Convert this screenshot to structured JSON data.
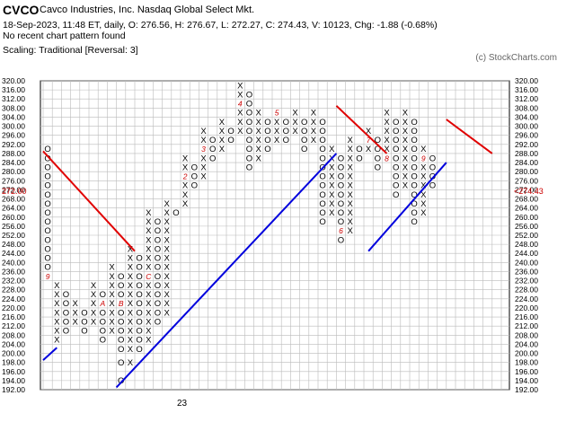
{
  "header": {
    "symbol": "CVCO",
    "company": "Cavco Industries, Inc.  Nasdaq Global Select Mkt.",
    "stats": "18-Sep-2023, 11:48 ET, daily, O: 276.56, H: 276.67, L: 272.27, C: 274.43, V: 10123, Chg: -1.88 (-0.68%)",
    "pattern": "No recent chart pattern found",
    "scaling": "Scaling: Traditional [Reversal: 3]",
    "copyright": "(c) StockCharts.com"
  },
  "chart_data": {
    "type": "point-and-figure",
    "box_size": 4,
    "reversal": 3,
    "ylim": [
      192,
      320
    ],
    "y_ticks": [
      192,
      194,
      196,
      198,
      200,
      204,
      208,
      212,
      216,
      220,
      224,
      228,
      232,
      236,
      240,
      244,
      248,
      252,
      256,
      260,
      264,
      268,
      272,
      276,
      280,
      284,
      288,
      292,
      296,
      300,
      304,
      308,
      312,
      316,
      320
    ],
    "y_tick_labels": [
      "192.00",
      "194.00",
      "196.00",
      "198.00",
      "200.00",
      "204.00",
      "208.00",
      "212.00",
      "216.00",
      "220.00",
      "224.00",
      "228.00",
      "232.00",
      "236.00",
      "240.00",
      "244.00",
      "248.00",
      "252.00",
      "256.00",
      "260.00",
      "264.00",
      "268.00",
      "272.00",
      "276.00",
      "280.00",
      "284.00",
      "288.00",
      "292.00",
      "296.00",
      "300.00",
      "304.00",
      "308.00",
      "312.00",
      "316.00",
      "320.00"
    ],
    "x_label": "23",
    "last_price_left": "272.00",
    "last_price_right": "<274.43",
    "columns": [
      {
        "t": "O",
        "lo": 232,
        "hi": 288,
        "marks": {
          "232": "9"
        }
      },
      {
        "t": "X",
        "lo": 204,
        "hi": 228
      },
      {
        "t": "O",
        "lo": 208,
        "hi": 224
      },
      {
        "t": "X",
        "lo": 212,
        "hi": 220
      },
      {
        "t": "O",
        "lo": 208,
        "hi": 216
      },
      {
        "t": "X",
        "lo": 212,
        "hi": 228
      },
      {
        "t": "O",
        "lo": 204,
        "hi": 224,
        "marks": {
          "220": "A"
        }
      },
      {
        "t": "X",
        "lo": 208,
        "hi": 236
      },
      {
        "t": "O",
        "lo": 192,
        "hi": 232,
        "marks": {
          "220": "B"
        }
      },
      {
        "t": "X",
        "lo": 196,
        "hi": 244
      },
      {
        "t": "O",
        "lo": 200,
        "hi": 240
      },
      {
        "t": "X",
        "lo": 204,
        "hi": 260,
        "marks": {
          "232": "C"
        }
      },
      {
        "t": "O",
        "lo": 212,
        "hi": 256
      },
      {
        "t": "X",
        "lo": 216,
        "hi": 264
      },
      {
        "t": "O",
        "lo": 260,
        "hi": 260
      },
      {
        "t": "X",
        "lo": 264,
        "hi": 284,
        "marks": {
          "276": "2"
        }
      },
      {
        "t": "O",
        "lo": 272,
        "hi": 280
      },
      {
        "t": "X",
        "lo": 276,
        "hi": 296,
        "marks": {
          "288": "3"
        }
      },
      {
        "t": "O",
        "lo": 284,
        "hi": 292
      },
      {
        "t": "X",
        "lo": 288,
        "hi": 300
      },
      {
        "t": "O",
        "lo": 292,
        "hi": 296
      },
      {
        "t": "X",
        "lo": 296,
        "hi": 316,
        "marks": {
          "308": "4"
        }
      },
      {
        "t": "O",
        "lo": 280,
        "hi": 312
      },
      {
        "t": "X",
        "lo": 284,
        "hi": 304
      },
      {
        "t": "O",
        "lo": 288,
        "hi": 300
      },
      {
        "t": "X",
        "lo": 292,
        "hi": 304,
        "marks": {
          "304": "5"
        }
      },
      {
        "t": "O",
        "lo": 292,
        "hi": 300
      },
      {
        "t": "X",
        "lo": 296,
        "hi": 304
      },
      {
        "t": "O",
        "lo": 288,
        "hi": 300
      },
      {
        "t": "X",
        "lo": 292,
        "hi": 304
      },
      {
        "t": "O",
        "lo": 256,
        "hi": 300
      },
      {
        "t": "X",
        "lo": 260,
        "hi": 288
      },
      {
        "t": "O",
        "lo": 248,
        "hi": 284,
        "marks": {
          "252": "6"
        }
      },
      {
        "t": "X",
        "lo": 252,
        "hi": 292
      },
      {
        "t": "O",
        "lo": 284,
        "hi": 288
      },
      {
        "t": "X",
        "lo": 288,
        "hi": 296,
        "marks": {
          "292": "7"
        }
      },
      {
        "t": "O",
        "lo": 280,
        "hi": 292
      },
      {
        "t": "X",
        "lo": 284,
        "hi": 304,
        "marks": {
          "284": "8"
        }
      },
      {
        "t": "O",
        "lo": 268,
        "hi": 300
      },
      {
        "t": "X",
        "lo": 272,
        "hi": 304
      },
      {
        "t": "O",
        "lo": 256,
        "hi": 300
      },
      {
        "t": "X",
        "lo": 260,
        "hi": 288,
        "marks": {
          "284": "9"
        }
      },
      {
        "t": "O",
        "lo": 272,
        "hi": 284
      }
    ],
    "trendlines": [
      {
        "color": "#e00000",
        "points": [
          [
            0,
            289
          ],
          [
            10,
            245
          ]
        ]
      },
      {
        "color": "#0000dd",
        "points": [
          [
            0,
            198.5
          ],
          [
            1.5,
            202.5
          ]
        ]
      },
      {
        "color": "#0000dd",
        "points": [
          [
            8,
            192.5
          ],
          [
            32,
            288
          ]
        ]
      },
      {
        "color": "#e00000",
        "points": [
          [
            32,
            309
          ],
          [
            37.5,
            288
          ]
        ]
      },
      {
        "color": "#0000dd",
        "points": [
          [
            35.5,
            245
          ],
          [
            44,
            284
          ]
        ]
      },
      {
        "color": "#e00000",
        "points": [
          [
            44,
            303
          ],
          [
            49,
            288
          ]
        ]
      }
    ]
  }
}
